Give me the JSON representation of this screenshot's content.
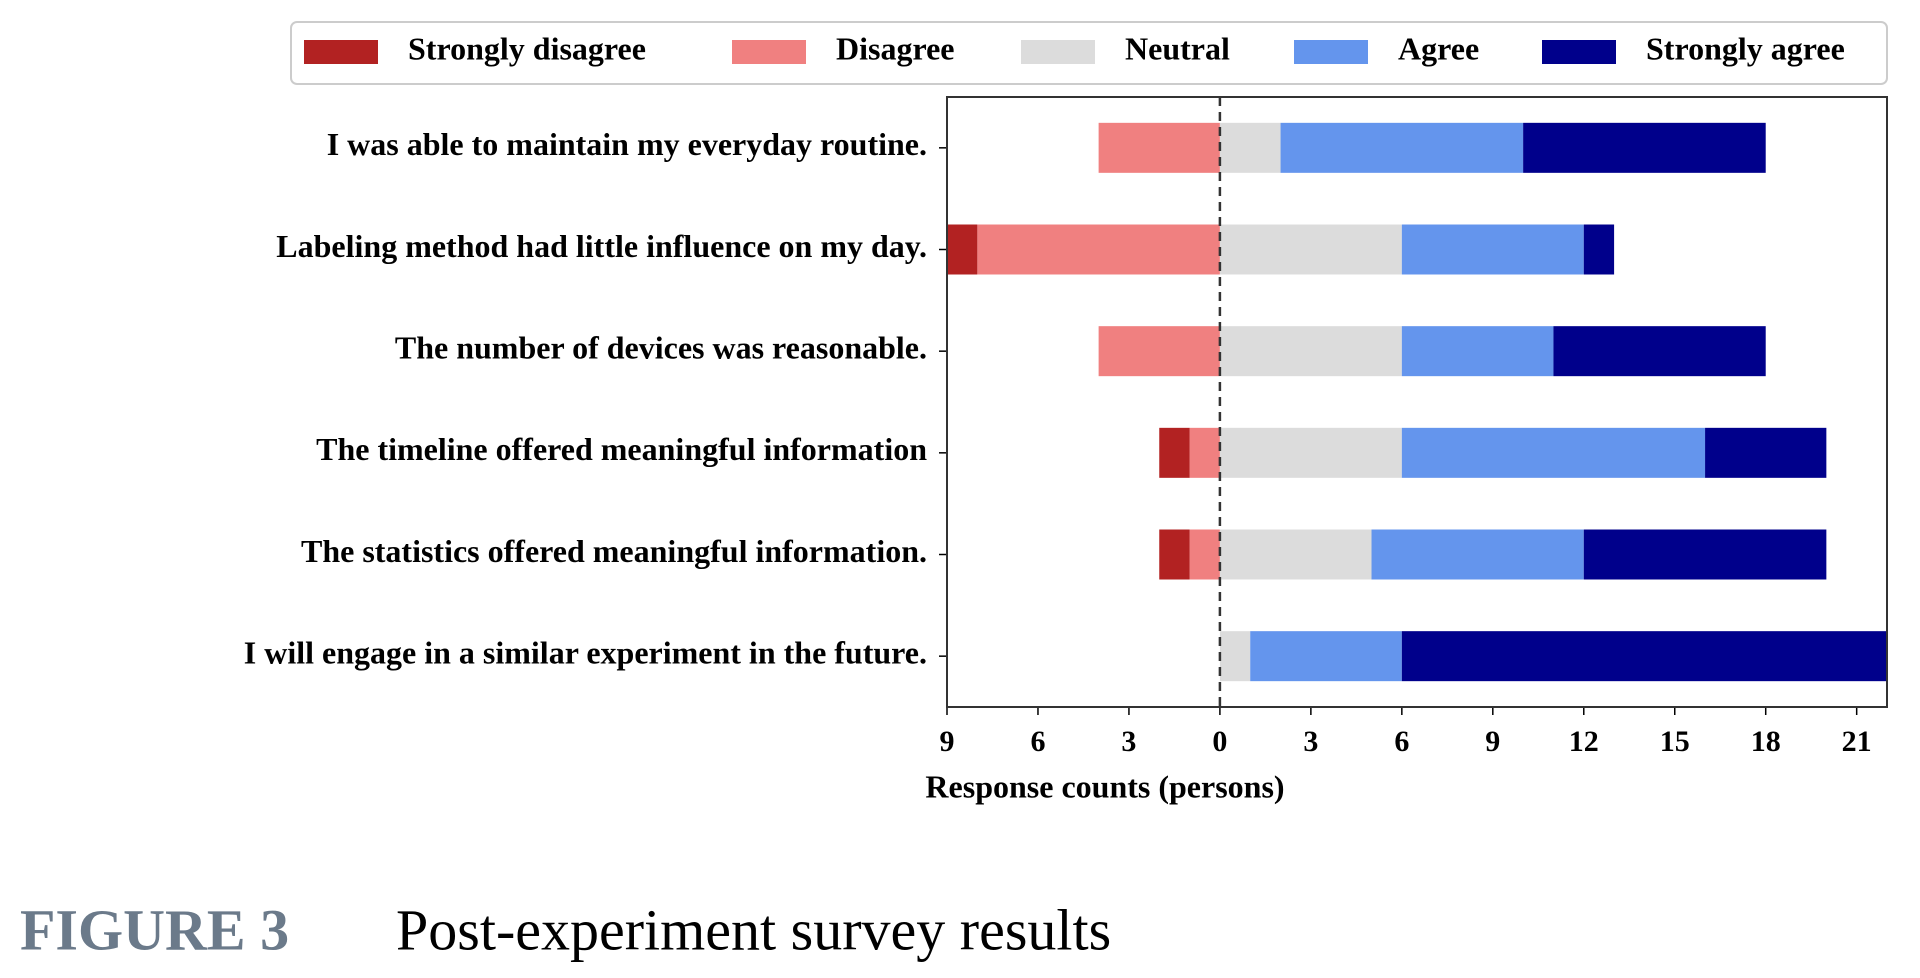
{
  "chart_data": {
    "type": "diverging-bar",
    "categories": [
      "I was able to maintain my everyday routine.",
      "Labeling method had little influence on my day.",
      "The number of devices was reasonable.",
      "The timeline offered meaningful information",
      "The statistics offered meaningful information.",
      "I will engage in a similar experiment in the future."
    ],
    "series": [
      {
        "name": "Strongly disagree",
        "color": "#b22222",
        "values": [
          0,
          1,
          0,
          1,
          1,
          0
        ]
      },
      {
        "name": "Disagree",
        "color": "#f08080",
        "values": [
          4,
          8,
          4,
          1,
          1,
          0
        ]
      },
      {
        "name": "Neutral",
        "color": "#dcdcdc",
        "values": [
          2,
          6,
          6,
          6,
          5,
          1
        ]
      },
      {
        "name": "Agree",
        "color": "#6495ed",
        "values": [
          8,
          6,
          5,
          10,
          7,
          5
        ]
      },
      {
        "name": "Strongly agree",
        "color": "#00008b",
        "values": [
          8,
          1,
          7,
          4,
          8,
          16
        ]
      }
    ],
    "xlabel": "Response counts (persons)",
    "xlim": [
      -9,
      22
    ],
    "xticks": [
      {
        "value": -9,
        "label": "9"
      },
      {
        "value": -6,
        "label": "6"
      },
      {
        "value": -3,
        "label": "3"
      },
      0,
      3,
      6,
      9,
      12,
      15,
      18,
      21
    ],
    "legend": "top"
  },
  "caption": {
    "label": "FIGURE 3",
    "text": "Post-experiment survey results"
  }
}
